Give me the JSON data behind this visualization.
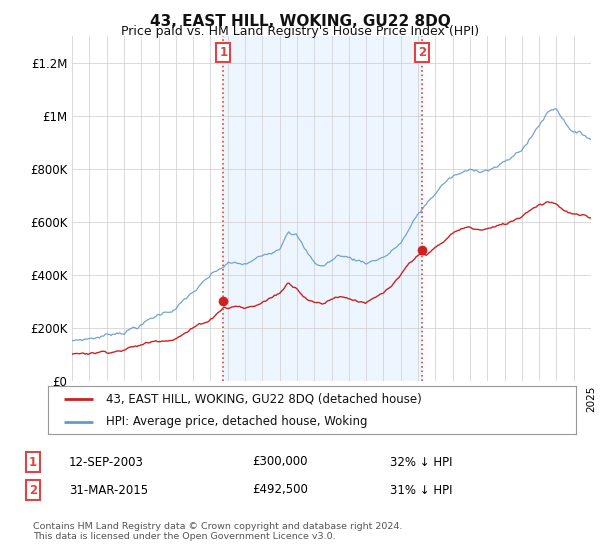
{
  "title": "43, EAST HILL, WOKING, GU22 8DQ",
  "subtitle": "Price paid vs. HM Land Registry's House Price Index (HPI)",
  "hpi_color": "#6699cc",
  "hpi_fill_color": "#ddeeff",
  "price_color": "#cc2222",
  "vline_color": "#dd4444",
  "background_color": "#ffffff",
  "grid_color": "#cccccc",
  "ylim": [
    0,
    1300000
  ],
  "yticks": [
    0,
    200000,
    400000,
    600000,
    800000,
    1000000,
    1200000
  ],
  "ytick_labels": [
    "£0",
    "£200K",
    "£400K",
    "£600K",
    "£800K",
    "£1M",
    "£1.2M"
  ],
  "x_start_year": 1995,
  "x_end_year": 2025,
  "sale1_year": 2003.75,
  "sale1_price": 300000,
  "sale1_label": "1",
  "sale2_year": 2015.25,
  "sale2_price": 492500,
  "sale2_label": "2",
  "legend_line1": "43, EAST HILL, WOKING, GU22 8DQ (detached house)",
  "legend_line2": "HPI: Average price, detached house, Woking",
  "table_row1_num": "1",
  "table_row1_date": "12-SEP-2003",
  "table_row1_price": "£300,000",
  "table_row1_hpi": "32% ↓ HPI",
  "table_row2_num": "2",
  "table_row2_date": "31-MAR-2015",
  "table_row2_price": "£492,500",
  "table_row2_hpi": "31% ↓ HPI",
  "footer": "Contains HM Land Registry data © Crown copyright and database right 2024.\nThis data is licensed under the Open Government Licence v3.0."
}
